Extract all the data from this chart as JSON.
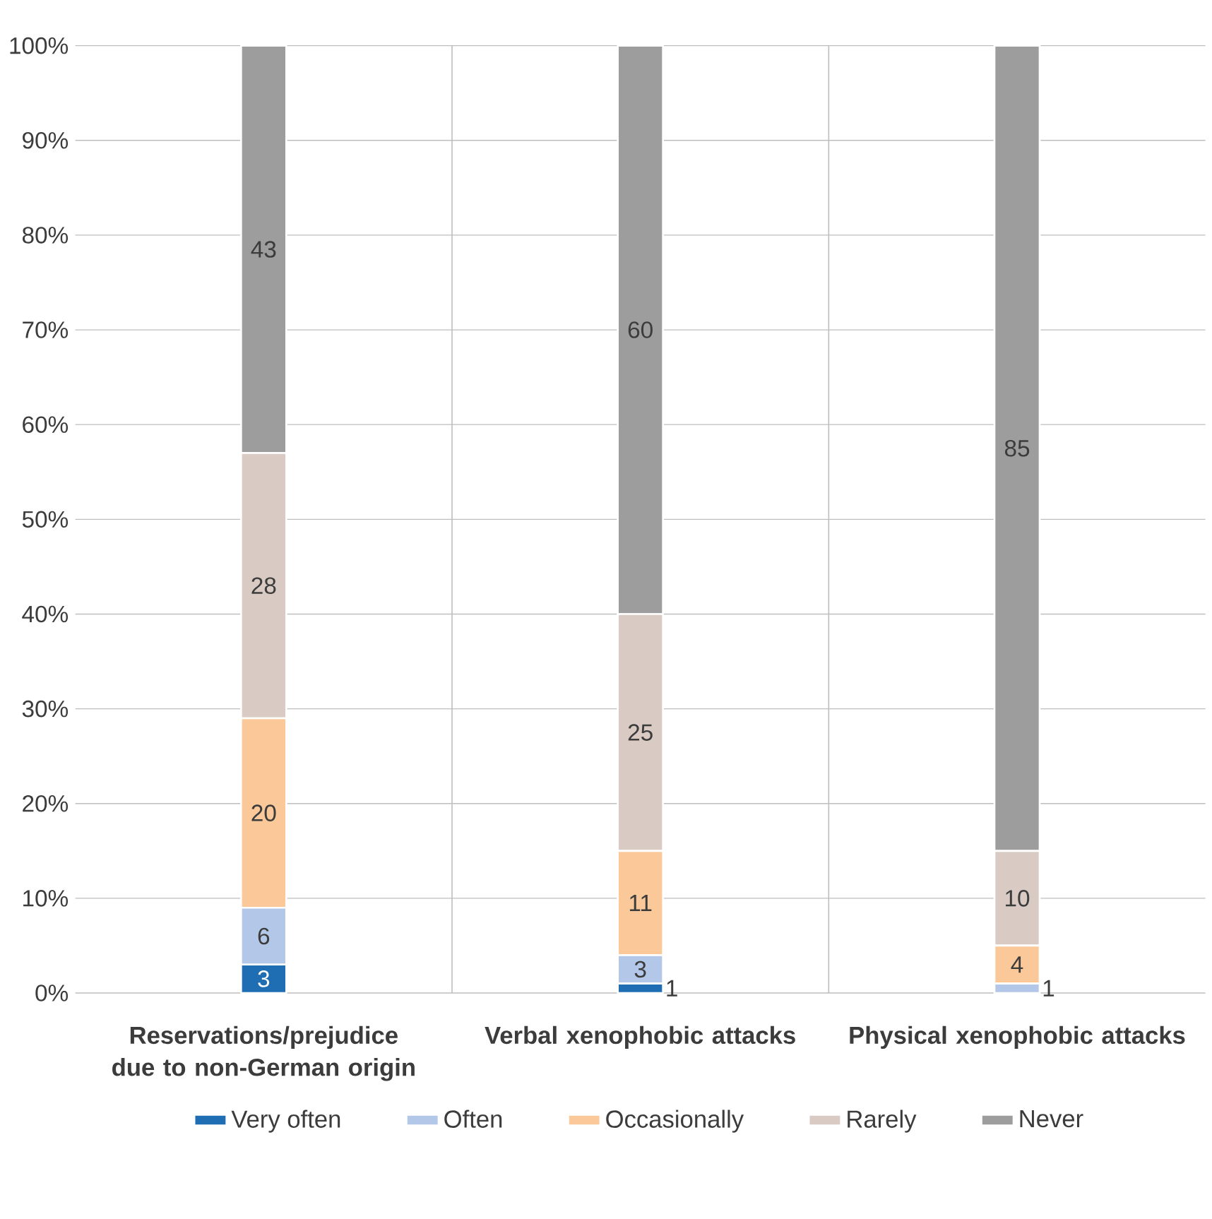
{
  "chart_data": {
    "type": "bar",
    "stacked": true,
    "categories": [
      "Reservations/prejudice due to non-German origin",
      "Verbal xenophobic attacks",
      "Physical xenophobic attacks"
    ],
    "series": [
      {
        "name": "Very often",
        "color": "#1f6db3",
        "values": [
          3,
          1,
          0
        ],
        "value_labels": [
          "3",
          "1",
          null
        ]
      },
      {
        "name": "Often",
        "color": "#b3c7e8",
        "values": [
          6,
          3,
          1
        ],
        "value_labels": [
          "6",
          "3",
          "1"
        ]
      },
      {
        "name": "Occasionally",
        "color": "#fbc899",
        "values": [
          20,
          11,
          4
        ],
        "value_labels": [
          "20",
          "11",
          "4"
        ]
      },
      {
        "name": "Rarely",
        "color": "#d9cbc3",
        "values": [
          28,
          25,
          10
        ],
        "value_labels": [
          "28",
          "25",
          "10"
        ]
      },
      {
        "name": "Never",
        "color": "#9d9d9d",
        "values": [
          43,
          60,
          85
        ],
        "value_labels": [
          "43",
          "60",
          "85"
        ]
      }
    ],
    "ylim": [
      0,
      100
    ],
    "yticks": [
      {
        "value": 0,
        "label": "0%"
      },
      {
        "value": 10,
        "label": "10%"
      },
      {
        "value": 20,
        "label": "20%"
      },
      {
        "value": 30,
        "label": "30%"
      },
      {
        "value": 40,
        "label": "40%"
      },
      {
        "value": 50,
        "label": "50%"
      },
      {
        "value": 60,
        "label": "60%"
      },
      {
        "value": 70,
        "label": "70%"
      },
      {
        "value": 80,
        "label": "80%"
      },
      {
        "value": 90,
        "label": "90%"
      },
      {
        "value": 100,
        "label": "100%"
      }
    ],
    "grid": "y",
    "legend": "bottom"
  }
}
